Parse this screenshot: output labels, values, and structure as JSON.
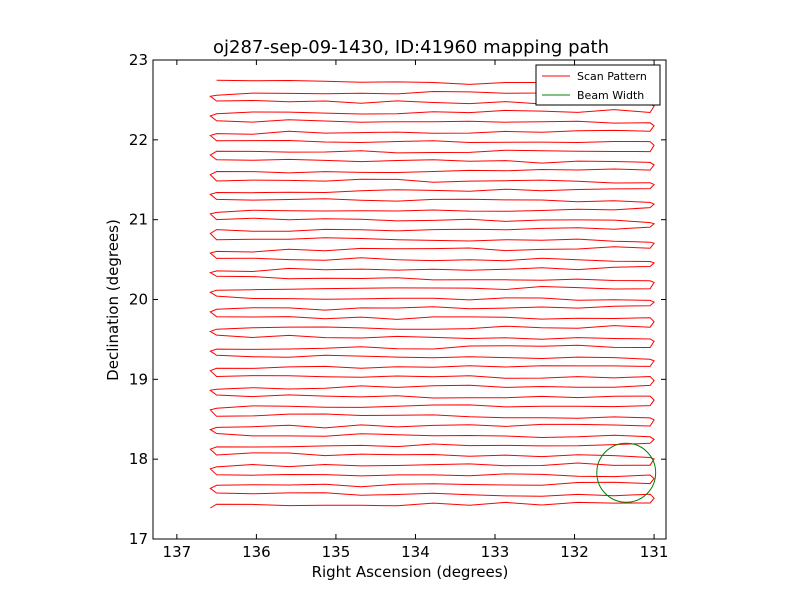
{
  "chart_data": {
    "type": "line",
    "title": "oj287-sep-09-1430, ID:41960 mapping path",
    "xlabel": "Right Ascension (degrees)",
    "ylabel": "Declination (degrees)",
    "xlim": [
      137.3,
      130.85
    ],
    "ylim": [
      17,
      23
    ],
    "x_ticks": [
      137,
      136,
      135,
      134,
      133,
      132,
      131
    ],
    "y_ticks": [
      17,
      18,
      19,
      20,
      21,
      22,
      23
    ],
    "grid": false,
    "legend_position": "top-right",
    "series": [
      {
        "name": "Scan Pattern",
        "color": "#ff0000",
        "kind": "raster-scan",
        "ra_range": [
          131.05,
          136.5
        ],
        "dec_range": [
          17.45,
          22.73
        ],
        "rows": 44
      },
      {
        "name": "Beam Width",
        "color": "#008000",
        "kind": "circle",
        "center": [
          131.35,
          17.83
        ],
        "radius": 0.37
      }
    ]
  }
}
